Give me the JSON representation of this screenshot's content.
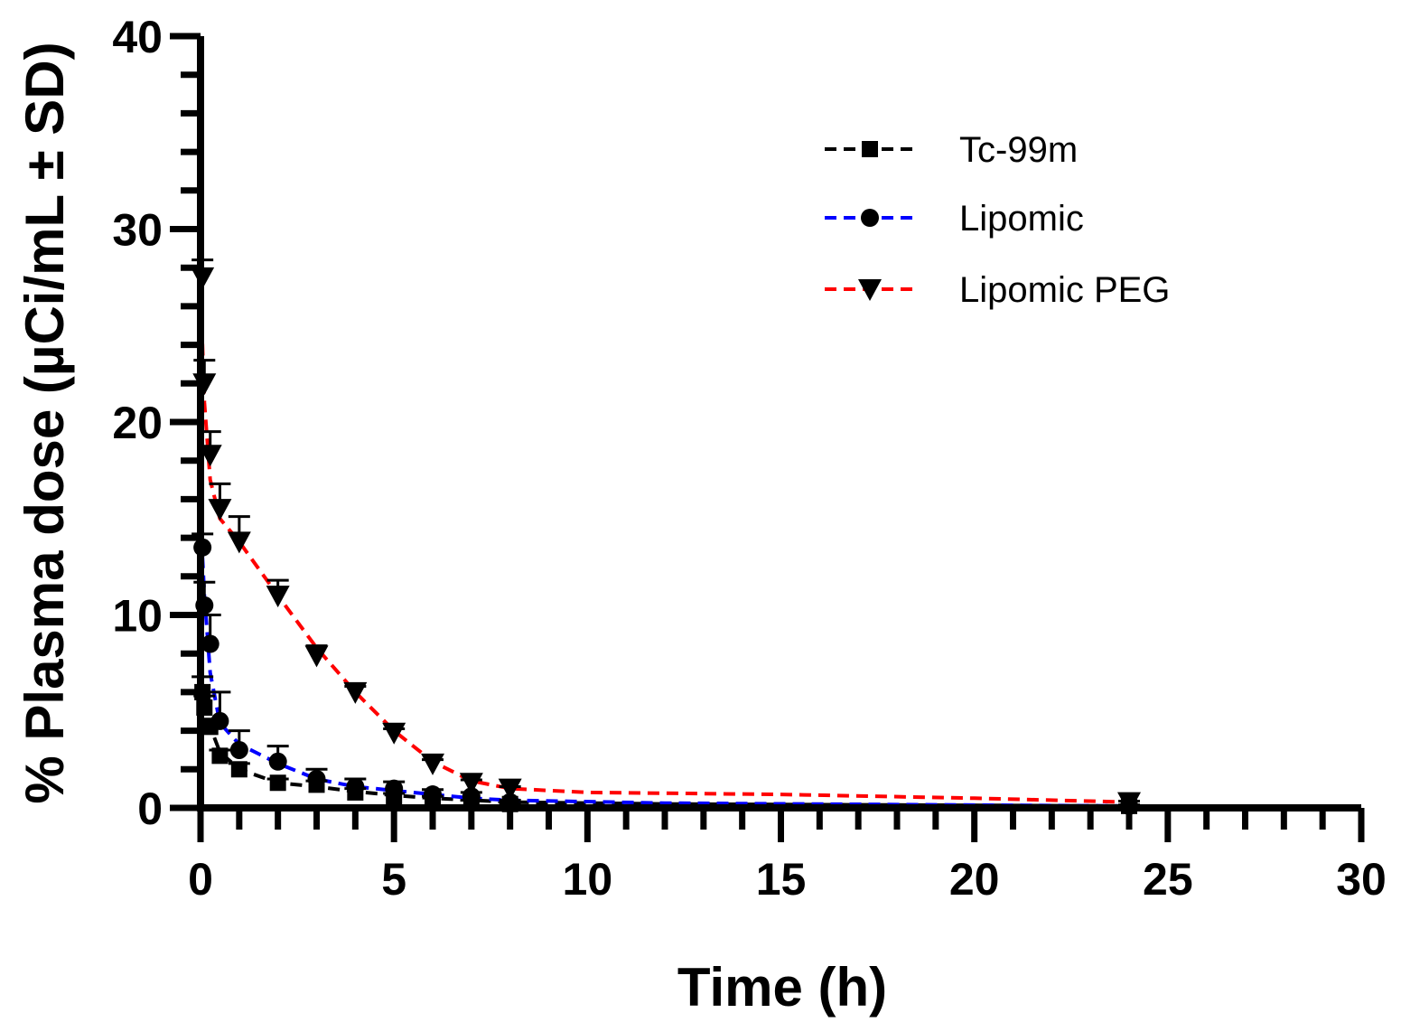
{
  "chart_data": {
    "type": "line",
    "title": "",
    "xlabel": "Time (h)",
    "ylabel": "% Plasma dose (µCi/mL ± SD)",
    "xlim": [
      0,
      30
    ],
    "ylim": [
      0,
      40
    ],
    "x_major_ticks": [
      0,
      5,
      10,
      15,
      20,
      25,
      30
    ],
    "x_tick_labels": [
      "0",
      "5",
      "10",
      "15",
      "20",
      "25",
      "30"
    ],
    "y_major_ticks": [
      0,
      10,
      20,
      30,
      40
    ],
    "y_tick_labels": [
      "0",
      "10",
      "20",
      "30",
      "40"
    ],
    "grid": false,
    "legend_position": "top-right",
    "series": [
      {
        "name": "Tc-99m",
        "color": "#000000",
        "marker": "square",
        "line_style": "dashed",
        "points": [
          {
            "x": 0.05,
            "y": 6.0,
            "sd": 0.8
          },
          {
            "x": 0.1,
            "y": 5.2,
            "sd": 0.6
          },
          {
            "x": 0.25,
            "y": 4.2,
            "sd": 0.4
          },
          {
            "x": 0.5,
            "y": 2.7,
            "sd": 0.3
          },
          {
            "x": 1,
            "y": 2.0,
            "sd": 0.3
          },
          {
            "x": 2,
            "y": 1.3,
            "sd": 0.2
          },
          {
            "x": 3,
            "y": 1.2,
            "sd": 0.2
          },
          {
            "x": 4,
            "y": 0.8,
            "sd": 0.2
          },
          {
            "x": 5,
            "y": 0.6,
            "sd": 0.15
          },
          {
            "x": 6,
            "y": 0.5,
            "sd": 0.1
          },
          {
            "x": 7,
            "y": 0.3,
            "sd": 0.1
          },
          {
            "x": 8,
            "y": 0.2,
            "sd": 0.05
          },
          {
            "x": 24,
            "y": 0.1,
            "sd": 0.05
          }
        ],
        "fit_curve": [
          {
            "x": 0,
            "y": 6.5
          },
          {
            "x": 0.25,
            "y": 4.2
          },
          {
            "x": 0.5,
            "y": 2.9
          },
          {
            "x": 1,
            "y": 2.0
          },
          {
            "x": 2,
            "y": 1.3
          },
          {
            "x": 3,
            "y": 1.1
          },
          {
            "x": 4,
            "y": 0.85
          },
          {
            "x": 5,
            "y": 0.65
          },
          {
            "x": 6,
            "y": 0.5
          },
          {
            "x": 8,
            "y": 0.3
          },
          {
            "x": 12,
            "y": 0.2
          },
          {
            "x": 24,
            "y": 0.1
          }
        ]
      },
      {
        "name": "Lipomic",
        "color": "#0000ff",
        "marker": "circle",
        "line_style": "dashed",
        "points": [
          {
            "x": 0.05,
            "y": 13.5,
            "sd": 0.7
          },
          {
            "x": 0.1,
            "y": 10.5,
            "sd": 1.2
          },
          {
            "x": 0.25,
            "y": 8.5,
            "sd": 1.5
          },
          {
            "x": 0.5,
            "y": 4.5,
            "sd": 1.5
          },
          {
            "x": 1,
            "y": 3.0,
            "sd": 1.0
          },
          {
            "x": 2,
            "y": 2.4,
            "sd": 0.8
          },
          {
            "x": 3,
            "y": 1.5,
            "sd": 0.5
          },
          {
            "x": 4,
            "y": 1.1,
            "sd": 0.4
          },
          {
            "x": 5,
            "y": 1.0,
            "sd": 0.35
          },
          {
            "x": 6,
            "y": 0.7,
            "sd": 0.25
          },
          {
            "x": 7,
            "y": 0.6,
            "sd": 0.2
          },
          {
            "x": 8,
            "y": 0.3,
            "sd": 0.1
          },
          {
            "x": 24,
            "y": 0.1,
            "sd": 0.05
          }
        ],
        "fit_curve": [
          {
            "x": 0,
            "y": 15.0
          },
          {
            "x": 0.1,
            "y": 11.0
          },
          {
            "x": 0.25,
            "y": 7.0
          },
          {
            "x": 0.5,
            "y": 4.4
          },
          {
            "x": 1,
            "y": 3.3
          },
          {
            "x": 2,
            "y": 2.3
          },
          {
            "x": 3,
            "y": 1.5
          },
          {
            "x": 4,
            "y": 1.1
          },
          {
            "x": 5,
            "y": 0.9
          },
          {
            "x": 6,
            "y": 0.7
          },
          {
            "x": 7,
            "y": 0.5
          },
          {
            "x": 8,
            "y": 0.4
          },
          {
            "x": 12,
            "y": 0.25
          },
          {
            "x": 24,
            "y": 0.1
          }
        ]
      },
      {
        "name": "Lipomic PEG",
        "color": "#ff0000",
        "marker": "triangle-down",
        "line_style": "dashed",
        "points": [
          {
            "x": 0.05,
            "y": 27.5,
            "sd": 0.9
          },
          {
            "x": 0.1,
            "y": 22.0,
            "sd": 1.2
          },
          {
            "x": 0.25,
            "y": 18.3,
            "sd": 1.2
          },
          {
            "x": 0.5,
            "y": 15.5,
            "sd": 1.3
          },
          {
            "x": 1,
            "y": 13.8,
            "sd": 1.3
          },
          {
            "x": 2,
            "y": 11.0,
            "sd": 0.8
          },
          {
            "x": 3,
            "y": 7.9,
            "sd": 0.5
          },
          {
            "x": 4,
            "y": 6.0,
            "sd": 0.3
          },
          {
            "x": 5,
            "y": 3.9,
            "sd": 0.2
          },
          {
            "x": 6,
            "y": 2.3,
            "sd": 0.2
          },
          {
            "x": 7,
            "y": 1.3,
            "sd": 0.15
          },
          {
            "x": 8,
            "y": 1.0,
            "sd": 0.1
          },
          {
            "x": 24,
            "y": 0.3,
            "sd": 0.05
          }
        ],
        "fit_curve": [
          {
            "x": 0,
            "y": 27.0
          },
          {
            "x": 0.1,
            "y": 21.0
          },
          {
            "x": 0.25,
            "y": 17.0
          },
          {
            "x": 0.5,
            "y": 15.0
          },
          {
            "x": 1,
            "y": 13.8
          },
          {
            "x": 2,
            "y": 11.0
          },
          {
            "x": 3,
            "y": 8.3
          },
          {
            "x": 4,
            "y": 6.0
          },
          {
            "x": 5,
            "y": 4.0
          },
          {
            "x": 6,
            "y": 2.4
          },
          {
            "x": 7,
            "y": 1.4
          },
          {
            "x": 8,
            "y": 1.0
          },
          {
            "x": 10,
            "y": 0.8
          },
          {
            "x": 15,
            "y": 0.7
          },
          {
            "x": 20,
            "y": 0.5
          },
          {
            "x": 24,
            "y": 0.3
          }
        ]
      }
    ]
  }
}
